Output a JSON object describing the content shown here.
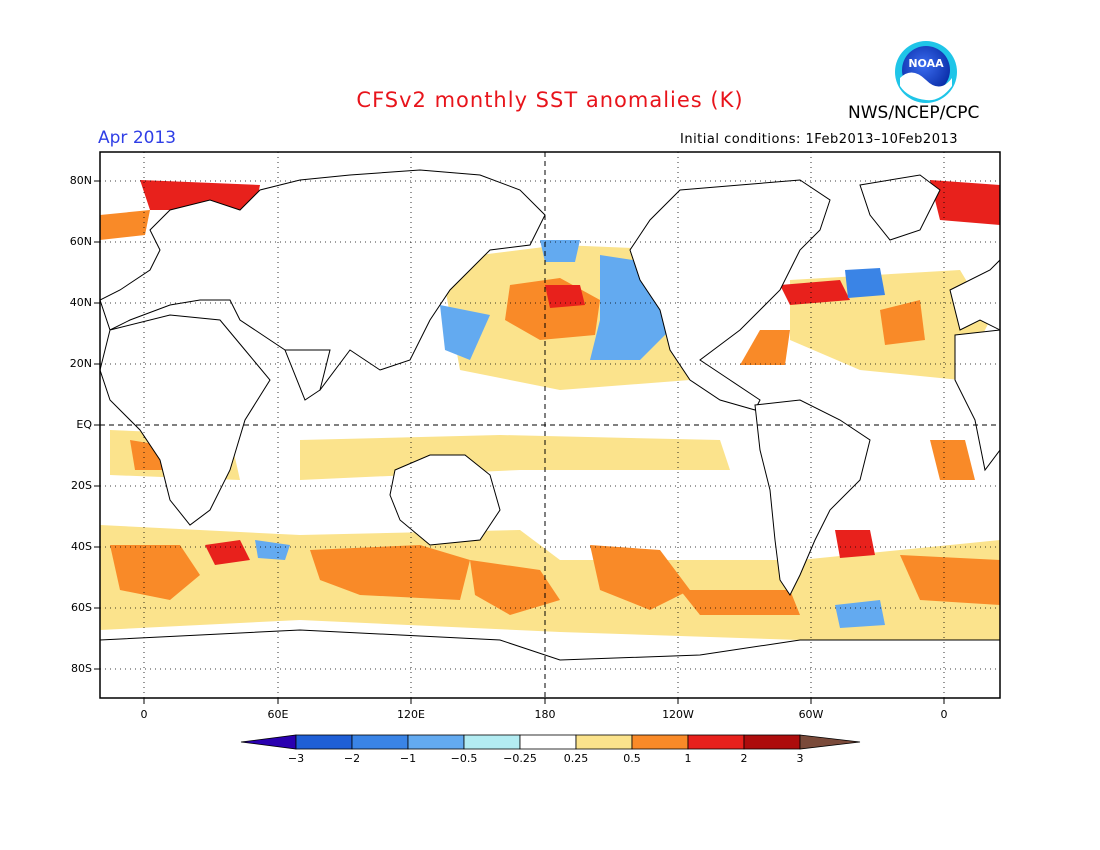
{
  "header": {
    "title": "CFSv2 monthly SST anomalies (K)",
    "organization": "NWS/NCEP/CPC",
    "logo_text": "NOAA",
    "month": "Apr 2013",
    "initial_conditions": "Initial conditions: 1Feb2013–10Feb2013"
  },
  "map": {
    "projection": "cylindrical",
    "center_longitude": 180,
    "lat_range": [
      -90,
      90
    ],
    "grid": "dotted",
    "lat_labels": [
      "80N",
      "60N",
      "40N",
      "20N",
      "EQ",
      "20S",
      "40S",
      "60S",
      "80S"
    ],
    "lon_labels": [
      "0",
      "60E",
      "120E",
      "180",
      "120W",
      "60W",
      "0"
    ],
    "dashed_reference_lines": [
      "EQ",
      "180"
    ]
  },
  "colorbar": {
    "labels": [
      "−3",
      "−2",
      "−1",
      "−0.5",
      "−0.25",
      "0.25",
      "0.5",
      "1",
      "2",
      "3"
    ],
    "colors": [
      "#2a00b0",
      "#1f5fd6",
      "#3a84e6",
      "#63aaf0",
      "#b3ecf2",
      "#ffffff",
      "#fbe38c",
      "#f98a28",
      "#e8211c",
      "#ad0c0c",
      "#7a4a3a"
    ]
  }
}
